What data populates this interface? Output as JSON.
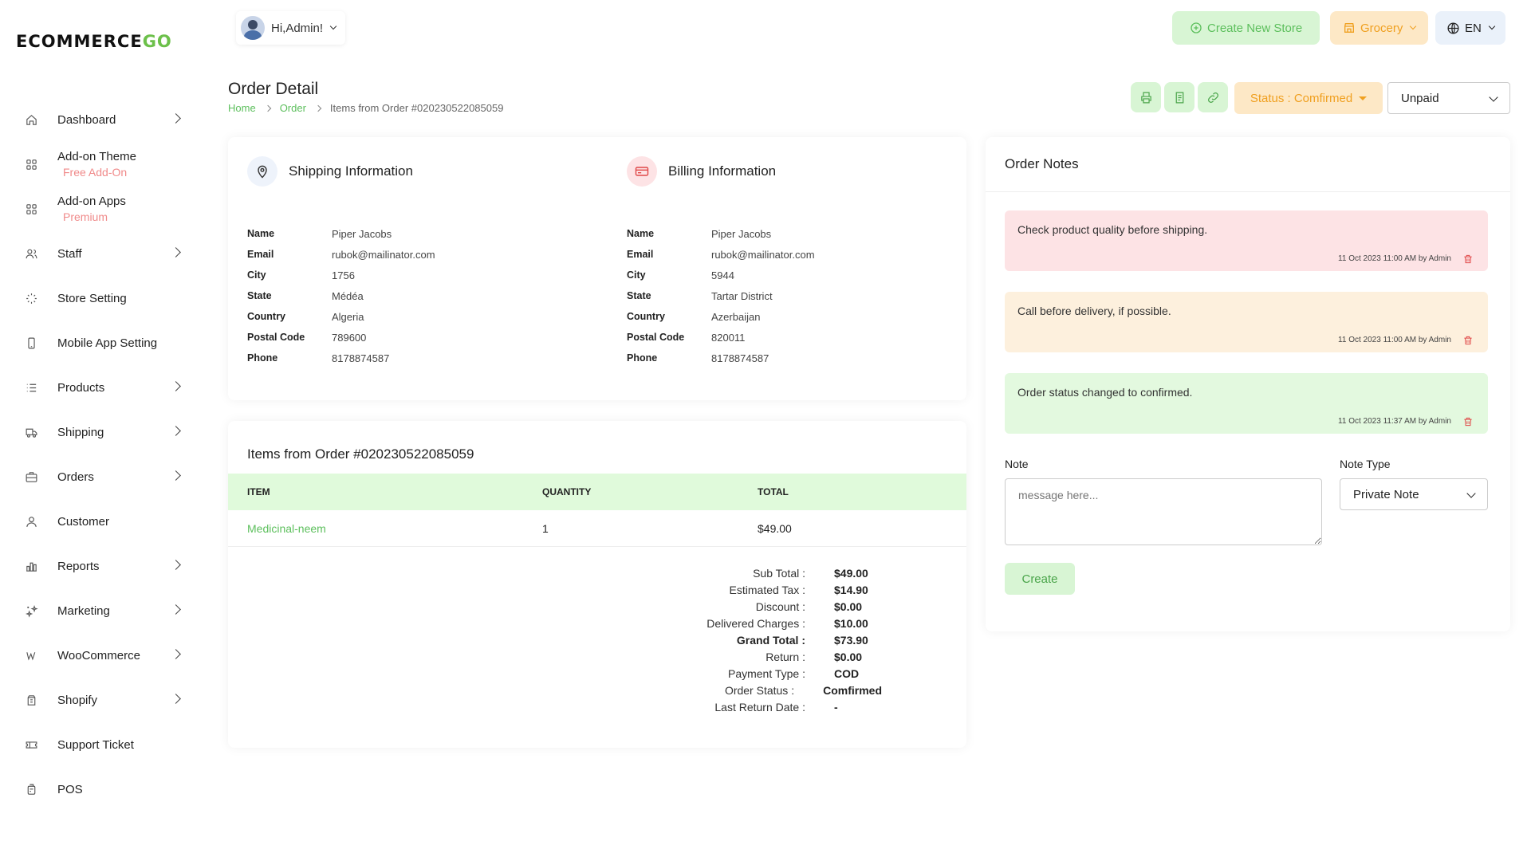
{
  "logo": {
    "main": "ECOMMERCE",
    "accent": "GO"
  },
  "colors": {
    "accent": "#5cbf5c",
    "warning": "#f0a020",
    "danger": "#e04848"
  },
  "sidebar": {
    "items": [
      {
        "label": "Dashboard",
        "icon": "home-icon",
        "arrow": true
      },
      {
        "label": "Add-on Theme",
        "sub": "Free Add-On",
        "icon": "grid-icon"
      },
      {
        "label": "Add-on Apps",
        "sub": "Premium",
        "icon": "grid-icon"
      },
      {
        "label": "Staff",
        "icon": "users-icon",
        "arrow": true
      },
      {
        "label": "Store Setting",
        "icon": "spinner-icon"
      },
      {
        "label": "Mobile App Setting",
        "icon": "mobile-icon"
      },
      {
        "label": "Products",
        "icon": "list-icon",
        "arrow": true
      },
      {
        "label": "Shipping",
        "icon": "truck-icon",
        "arrow": true
      },
      {
        "label": "Orders",
        "icon": "briefcase-icon",
        "arrow": true
      },
      {
        "label": "Customer",
        "icon": "user-icon"
      },
      {
        "label": "Reports",
        "icon": "bar-chart-icon",
        "arrow": true
      },
      {
        "label": "Marketing",
        "icon": "sparkles-icon",
        "arrow": true
      },
      {
        "label": "WooCommerce",
        "icon": "woocommerce-icon",
        "arrow": true
      },
      {
        "label": "Shopify",
        "icon": "shopify-icon",
        "arrow": true
      },
      {
        "label": "Support Ticket",
        "icon": "ticket-icon"
      },
      {
        "label": "POS",
        "icon": "pos-icon"
      }
    ]
  },
  "header": {
    "greeting": "Hi,Admin!",
    "create_store": "Create New Store",
    "store_select": "Grocery",
    "language": "EN"
  },
  "page": {
    "title": "Order Detail",
    "breadcrumb": [
      "Home",
      "Order",
      "Items from Order #020230522085059"
    ],
    "status_button": "Status : Comfirmed",
    "payment_select": "Unpaid"
  },
  "shipping": {
    "title": "Shipping Information",
    "rows": [
      {
        "k": "Name",
        "v": "Piper Jacobs"
      },
      {
        "k": "Email",
        "v": "rubok@mailinator.com"
      },
      {
        "k": "City",
        "v": "1756"
      },
      {
        "k": "State",
        "v": "Médéa"
      },
      {
        "k": "Country",
        "v": "Algeria"
      },
      {
        "k": "Postal Code",
        "v": "789600"
      },
      {
        "k": "Phone",
        "v": "8178874587"
      }
    ]
  },
  "billing": {
    "title": "Billing Information",
    "rows": [
      {
        "k": "Name",
        "v": "Piper Jacobs"
      },
      {
        "k": "Email",
        "v": "rubok@mailinator.com"
      },
      {
        "k": "City",
        "v": "5944"
      },
      {
        "k": "State",
        "v": "Tartar District"
      },
      {
        "k": "Country",
        "v": "Azerbaijan"
      },
      {
        "k": "Postal Code",
        "v": "820011"
      },
      {
        "k": "Phone",
        "v": "8178874587"
      }
    ]
  },
  "items": {
    "title": "Items from Order #020230522085059",
    "columns": [
      "ITEM",
      "QUANTITY",
      "TOTAL"
    ],
    "rows": [
      {
        "item": "Medicinal-neem",
        "quantity": "1",
        "total": "$49.00"
      }
    ],
    "totals": [
      {
        "k": "Sub Total :",
        "v": "$49.00"
      },
      {
        "k": "Estimated Tax :",
        "v": "$14.90"
      },
      {
        "k": "Discount :",
        "v": "$0.00"
      },
      {
        "k": "Delivered Charges :",
        "v": "$10.00"
      },
      {
        "k": "Grand Total :",
        "v": "$73.90",
        "bold": true
      },
      {
        "k": "Return :",
        "v": "$0.00"
      },
      {
        "k": "Payment Type :",
        "v": "COD"
      },
      {
        "k": "Order Status :",
        "v": "Comfirmed"
      },
      {
        "k": "Last Return Date :",
        "v": "-"
      }
    ]
  },
  "notes": {
    "title": "Order Notes",
    "list": [
      {
        "text": "Check product quality before shipping.",
        "meta": "11 Oct 2023 11:00 AM by Admin"
      },
      {
        "text": "Call before delivery, if possible.",
        "meta": "11 Oct 2023 11:00 AM by Admin"
      },
      {
        "text": "Order status changed to confirmed.",
        "meta": "11 Oct 2023 11:37 AM by Admin"
      }
    ],
    "note_label": "Note",
    "note_placeholder": "message here...",
    "type_label": "Note Type",
    "type_value": "Private Note",
    "create_label": "Create"
  }
}
